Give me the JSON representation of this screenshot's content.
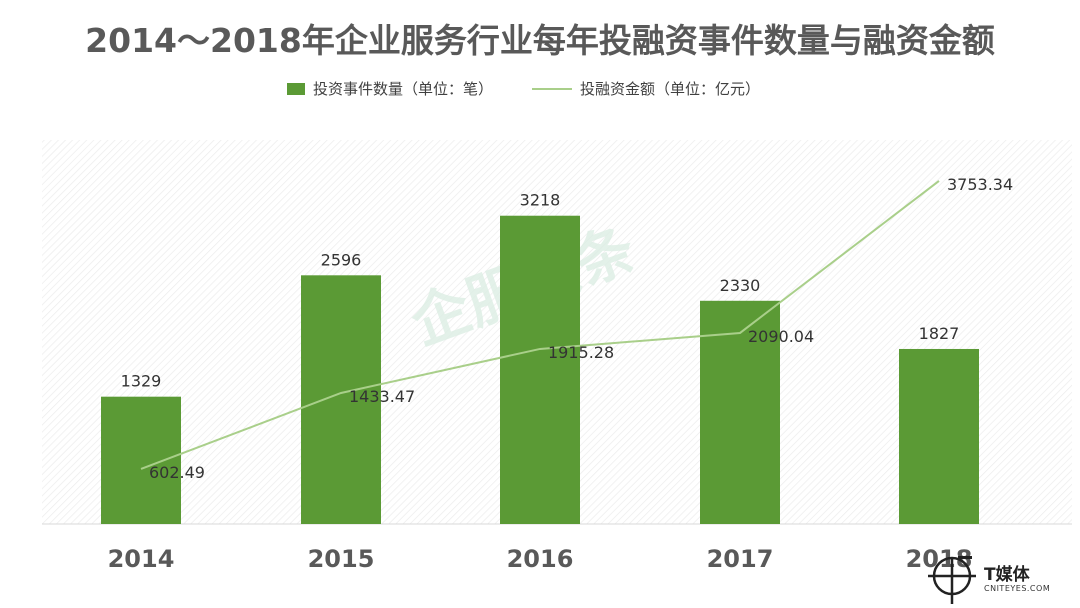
{
  "chart_data": {
    "type": "bar",
    "title": "2014～2018年企业服务行业每年投融资事件数量与融资金额",
    "categories": [
      "2014",
      "2015",
      "2016",
      "2017",
      "2018"
    ],
    "series": [
      {
        "name": "投资事件数量（单位：笔）",
        "type": "bar",
        "color": "#5b9a35",
        "values": [
          1329,
          2596,
          3218,
          2330,
          1827
        ]
      },
      {
        "name": "投融资金额（单位：亿元）",
        "type": "line",
        "color": "#a9cf8a",
        "values": [
          602.49,
          1433.47,
          1915.28,
          2090.04,
          3753.34
        ]
      }
    ],
    "legend_position": "top",
    "grid": false
  },
  "watermark": "企服头条",
  "logo": {
    "name": "T媒体",
    "domain": "CNITEYES.COM"
  }
}
